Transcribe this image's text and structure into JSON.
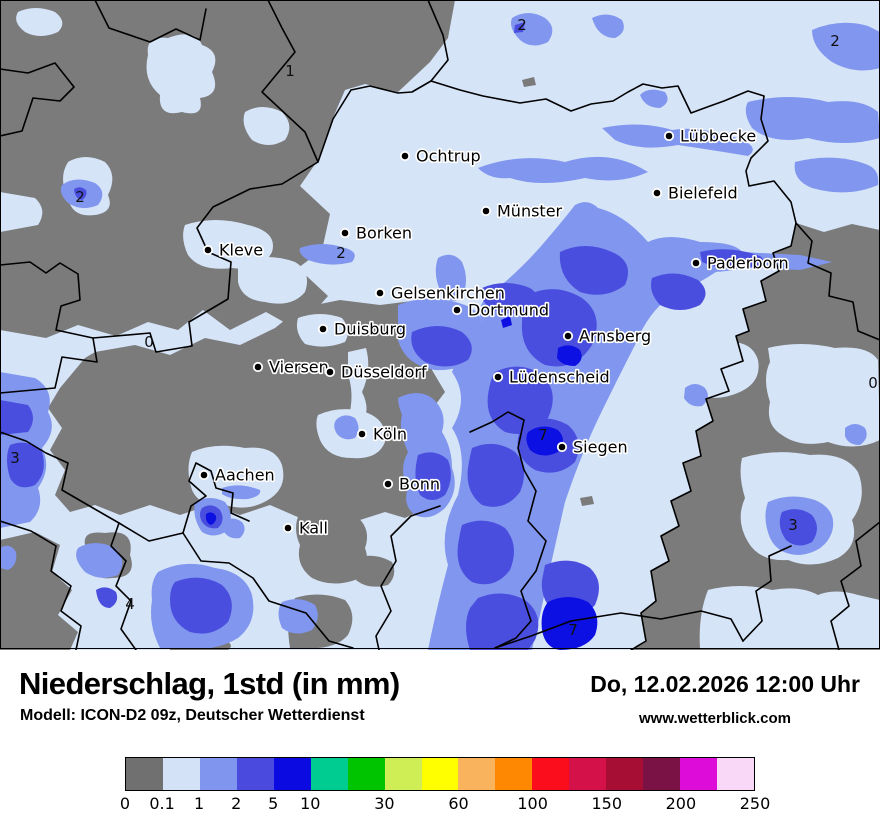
{
  "footer": {
    "title": "Niederschlag, 1std (in mm)",
    "model_line": "Modell: ICON-D2 09z, Deutscher Wetterdienst",
    "datetime": "Do, 12.02.2026 12:00 Uhr",
    "website": "www.wetterblick.com"
  },
  "legend": {
    "cell_count": 17,
    "colors": [
      "#707070",
      "#d3e2f7",
      "#8096ee",
      "#4a4ade",
      "#0b0be1",
      "#00cc92",
      "#00c400",
      "#cfee55",
      "#ffff00",
      "#f8b35c",
      "#fe8802",
      "#fb0d1b",
      "#d41149",
      "#a60e33",
      "#7a1245",
      "#dd0cd8",
      "#f8d8f6"
    ],
    "tick_labels": [
      "0",
      "0.1",
      "1",
      "2",
      "5",
      "10",
      "30",
      "60",
      "100",
      "150",
      "200",
      "250"
    ],
    "tick_positions": [
      0,
      1,
      2,
      3,
      4,
      5,
      7,
      9,
      11,
      13,
      15,
      17
    ]
  },
  "map": {
    "levels": {
      "mm0": "#7b7b7b",
      "mm01": "#d6e4f8",
      "mm1": "#8196ee",
      "mm2": "#4a4edf",
      "mm5": "#0c10e2"
    },
    "border_color": "#000000",
    "cities": [
      {
        "name": "Ochtrup"
      },
      {
        "name": "Lübbecke"
      },
      {
        "name": "Münster"
      },
      {
        "name": "Bielefeld"
      },
      {
        "name": "Borken"
      },
      {
        "name": "Kleve"
      },
      {
        "name": "Paderborn"
      },
      {
        "name": "Gelsenkirchen"
      },
      {
        "name": "Dortmund"
      },
      {
        "name": "Duisburg"
      },
      {
        "name": "Arnsberg"
      },
      {
        "name": "Viersen"
      },
      {
        "name": "Düsseldorf"
      },
      {
        "name": "Lüdenscheid"
      },
      {
        "name": "Köln"
      },
      {
        "name": "Siegen"
      },
      {
        "name": "Aachen"
      },
      {
        "name": "Bonn"
      },
      {
        "name": "Kall"
      }
    ],
    "value_labels": [
      "1",
      "2",
      "2",
      "2",
      "2",
      "0",
      "3",
      "4",
      "7",
      "0",
      "3",
      "7"
    ]
  }
}
